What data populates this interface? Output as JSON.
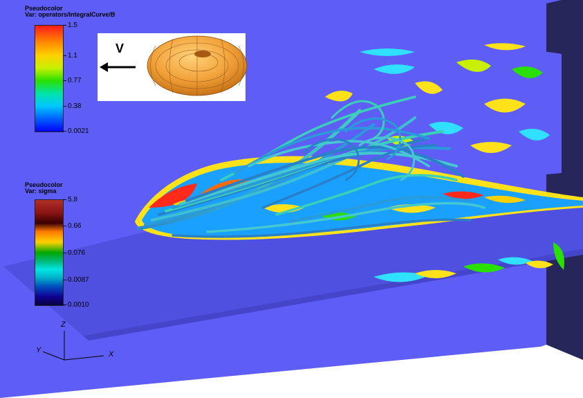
{
  "legend_velocity": {
    "title_line1": "Pseudocolor",
    "title_line2": "Var: operators/IntegralCurve/B",
    "ticks": [
      "1.5",
      "1.1",
      "0.77",
      "0.38",
      "0.0021"
    ]
  },
  "legend_sigma": {
    "title_line1": "Pseudocolor",
    "title_line2": "Var: sigma",
    "ticks": [
      "5.8",
      "0.66",
      "0.076",
      "0.0087",
      "0.0010"
    ]
  },
  "inset": {
    "velocity_label": "V"
  },
  "axes": {
    "z_label": "Z",
    "y_label": "Y",
    "x_label": "X"
  },
  "colors": {
    "plane": "#5c5cf6",
    "plane_dark": "#4a4ad8",
    "wall": "#26265a",
    "torus": "#f2a23a"
  }
}
